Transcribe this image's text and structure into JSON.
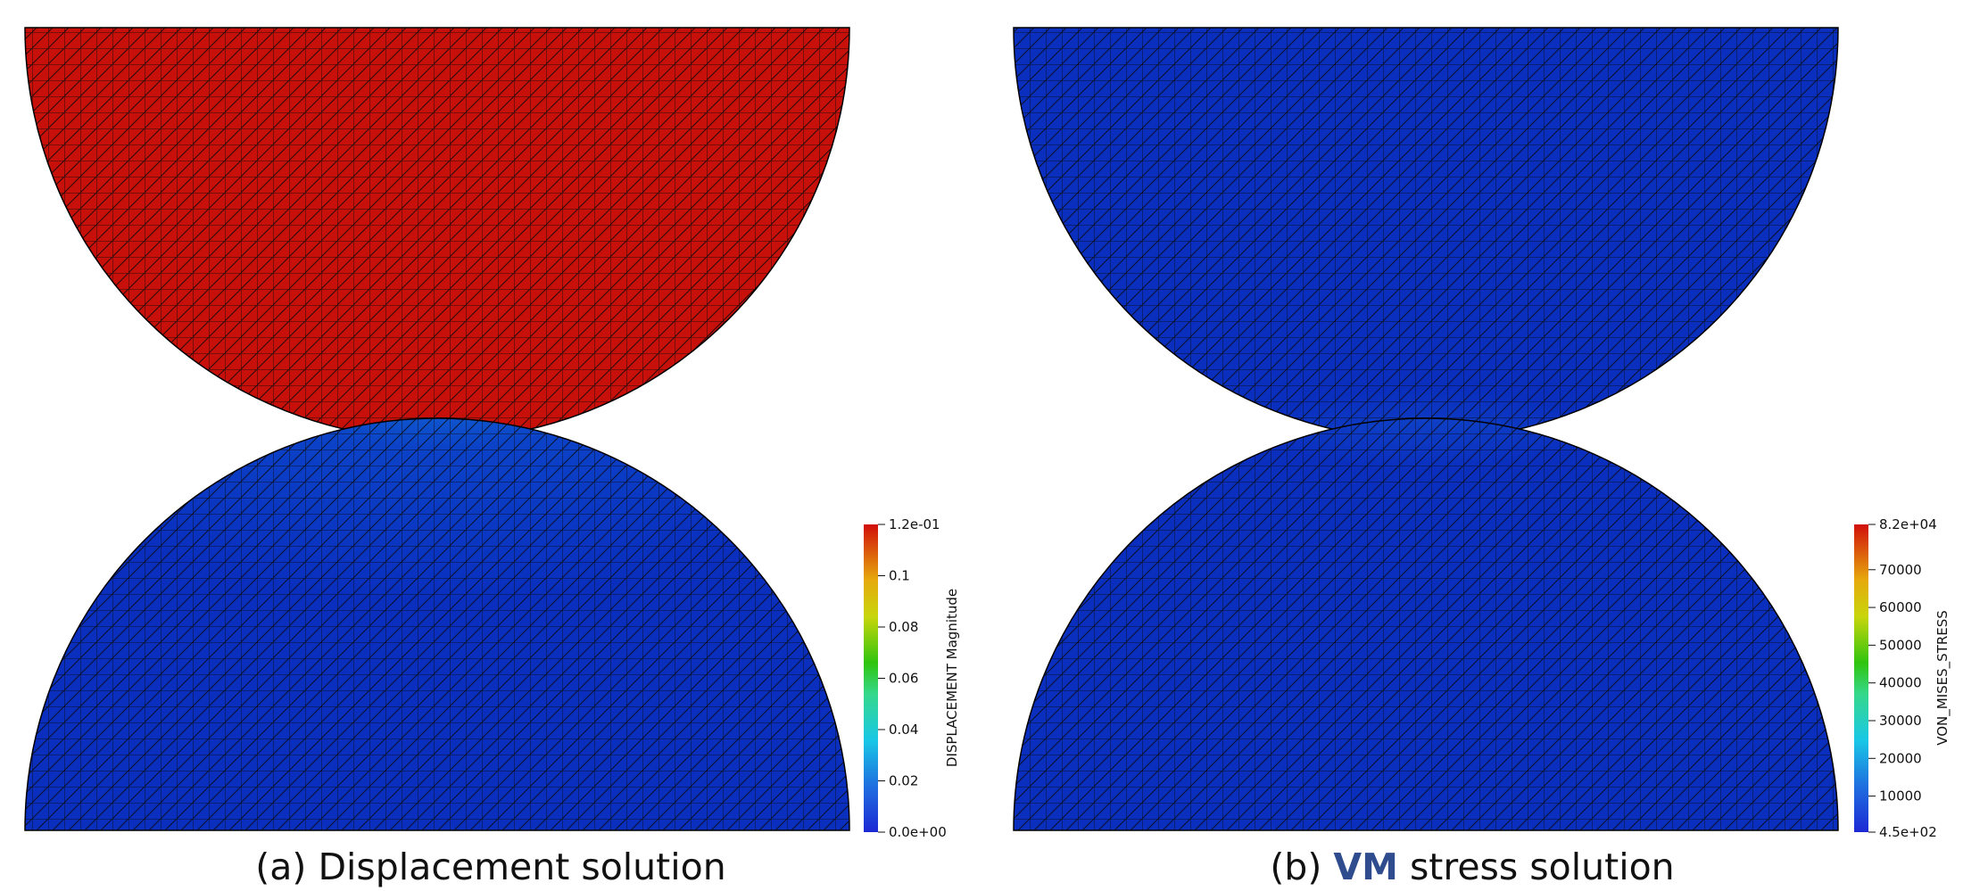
{
  "panels": [
    {
      "id": "a",
      "caption_prefix": "(a) ",
      "caption_emph": "",
      "caption_main": "Displacement solution",
      "colorbar": {
        "title": "DISPLACEMENT Magnitude",
        "max_label": "1.2e-01",
        "min_label": "0.0e+00",
        "ticks": [
          "0.1",
          "0.08",
          "0.06",
          "0.04",
          "0.02"
        ],
        "tick_values": [
          0.1,
          0.08,
          0.06,
          0.04,
          0.02
        ],
        "range": [
          0.0,
          0.12
        ]
      },
      "colors": {
        "top_body": "#c8100a",
        "bottom_body": "#0a2fbf",
        "contact_peak": "#e8c81a"
      }
    },
    {
      "id": "b",
      "caption_prefix": "(b) ",
      "caption_emph": "VM",
      "caption_main": " stress solution",
      "colorbar": {
        "title": "VON_MISES_STRESS",
        "max_label": "8.2e+04",
        "min_label": "4.5e+02",
        "ticks": [
          "70000",
          "60000",
          "50000",
          "40000",
          "30000",
          "20000",
          "10000"
        ],
        "tick_values": [
          70000,
          60000,
          50000,
          40000,
          30000,
          20000,
          10000
        ],
        "range": [
          450,
          82000
        ]
      },
      "colors": {
        "top_body": "#0a2fbf",
        "bottom_body": "#0a2fbf",
        "contact_peak": "#d01a0c"
      }
    }
  ]
}
